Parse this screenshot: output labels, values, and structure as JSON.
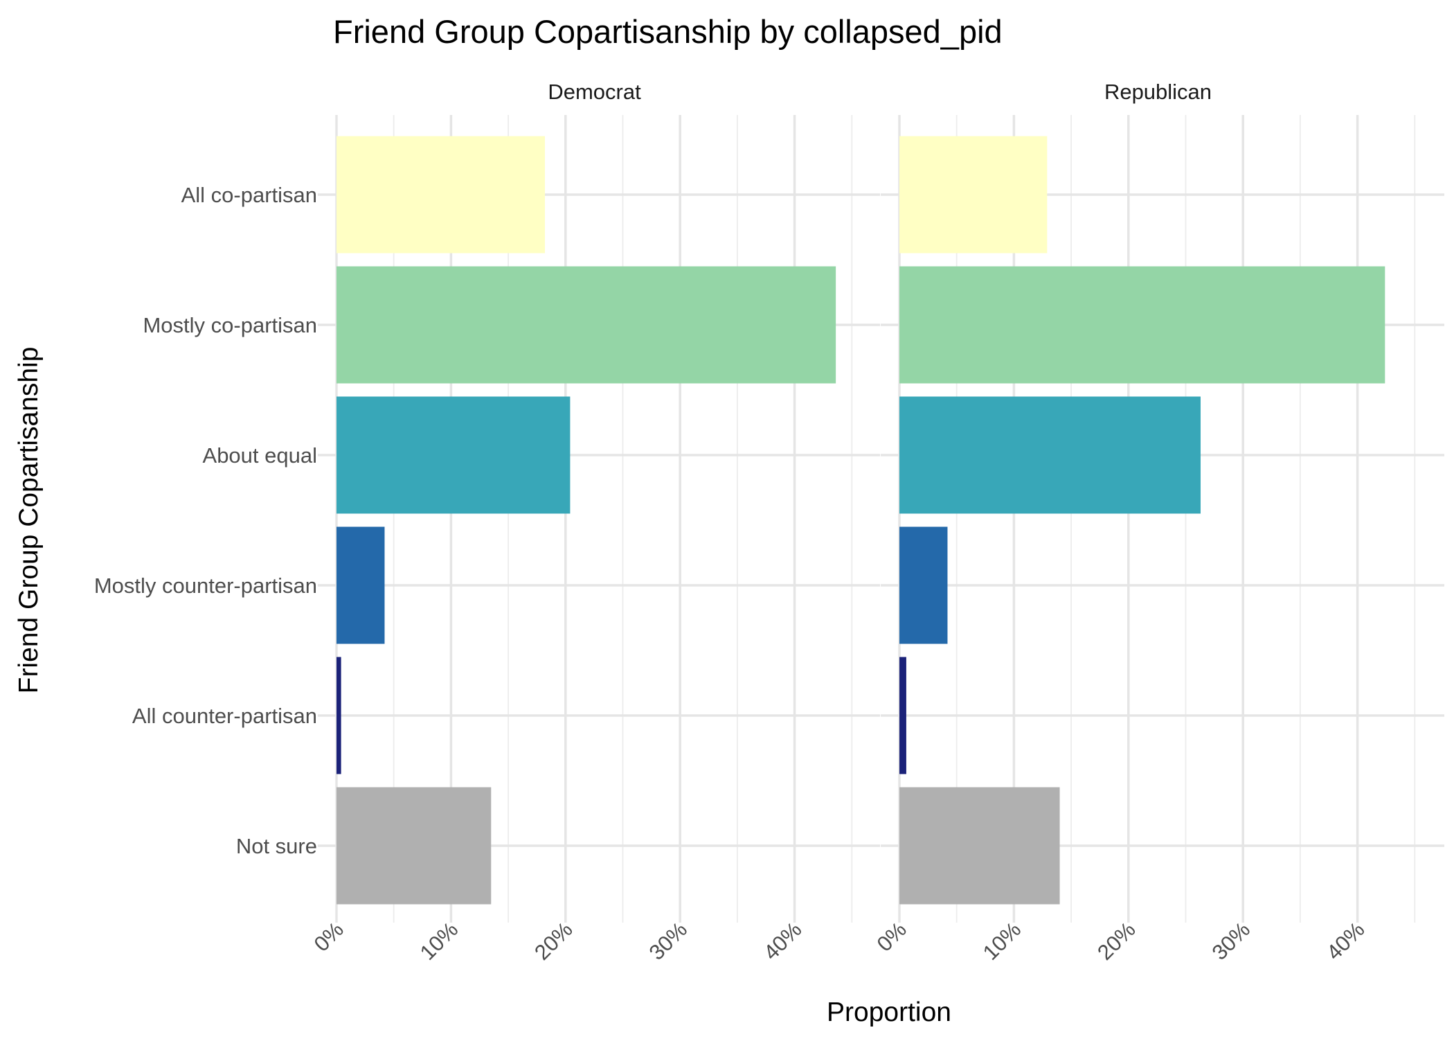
{
  "chart_data": {
    "type": "bar",
    "orientation": "horizontal",
    "title": "Friend Group Copartisanship by collapsed_pid",
    "xlabel": "Proportion",
    "ylabel": "Friend Group Copartisanship",
    "xlim": [
      0,
      45
    ],
    "x_tick_labels": [
      "0%",
      "10%",
      "20%",
      "30%",
      "40%"
    ],
    "x_tick_values": [
      0,
      10,
      20,
      30,
      40
    ],
    "grid": true,
    "legend": "none",
    "categories": [
      "All co-partisan",
      "Mostly co-partisan",
      "About equal",
      "Mostly counter-partisan",
      "All counter-partisan",
      "Not sure"
    ],
    "colors": [
      "#ffffc4",
      "#94d5a6",
      "#38a7b8",
      "#2469aa",
      "#1b2279",
      "#b0b0b0"
    ],
    "panels": [
      {
        "name": "Democrat",
        "values": [
          18.2,
          43.6,
          20.4,
          4.2,
          0.4,
          13.5
        ]
      },
      {
        "name": "Republican",
        "values": [
          12.9,
          42.4,
          26.3,
          4.2,
          0.6,
          14.0
        ]
      }
    ]
  }
}
